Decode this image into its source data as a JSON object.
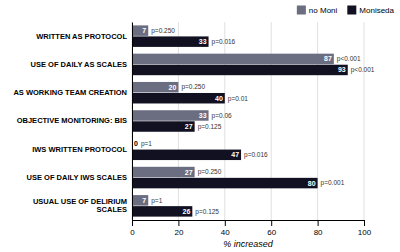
{
  "chart_data": {
    "type": "bar",
    "orientation": "horizontal",
    "categories": [
      "WRITTEN AS PROTOCOL",
      "USE OF DAILY AS SCALES",
      "AS WORKING TEAM CREATION",
      "OBJECTIVE MONITORING: BIS",
      "IWS WRITTEN PROTOCOL",
      "USE OF DAILY IWS SCALES",
      "USUAL USE OF DELIRIUM\nSCALES"
    ],
    "series": [
      {
        "name": "no Moni",
        "color": "#6b6d80",
        "values": [
          7,
          87,
          20,
          33,
          0,
          27,
          7
        ],
        "annotations": [
          "p=0.250",
          "p<0.001",
          "p=0.250",
          "p=0.06",
          "p=1",
          "p=0.250",
          "p=1"
        ]
      },
      {
        "name": "Moniseda",
        "color": "#111122",
        "values": [
          33,
          93,
          40,
          27,
          47,
          80,
          26
        ],
        "annotations": [
          "p=0.016",
          "p<0.001",
          "p=0.01",
          "p=0.125",
          "p=0.016",
          "p=0.001",
          "p=0.125"
        ]
      }
    ],
    "x_label": "% increased",
    "xlim": [
      0,
      100
    ],
    "xticks": [
      0,
      20,
      40,
      60,
      80,
      100
    ],
    "grid": true,
    "data_labels": true,
    "legend": "top-right"
  }
}
